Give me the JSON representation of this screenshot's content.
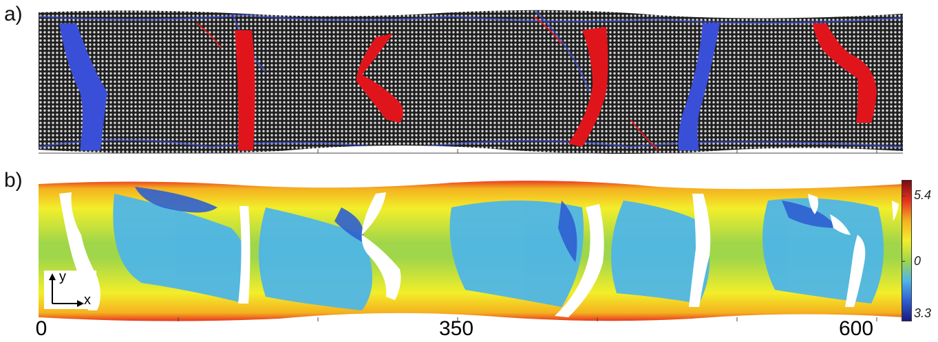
{
  "panel_labels": {
    "a": "a)",
    "b": "b)"
  },
  "x_axis": {
    "tick_labels": [
      "0",
      "350",
      "600"
    ]
  },
  "colorbar": {
    "top_label": "5.4",
    "mid_label": "0",
    "bottom_label": "3.3",
    "colors": [
      "#7a0a12",
      "#e83020",
      "#f4b020",
      "#f3ee2a",
      "#9fd64a",
      "#4fb6e6",
      "#2f5fd0",
      "#1a1a80"
    ]
  },
  "axes_glyph": {
    "y": "y",
    "x": "x"
  },
  "palette": {
    "panel_a_bg": "#2b2b2b",
    "panel_a_grid": "#cfcfcf",
    "blue_defects": "#3a4fd8",
    "red_defects": "#e0151b",
    "panel_b_blue": "#4fb6e6",
    "panel_b_yellow": "#f3ee2a",
    "panel_b_green": "#9fd64a",
    "panel_b_red": "#e83020"
  }
}
